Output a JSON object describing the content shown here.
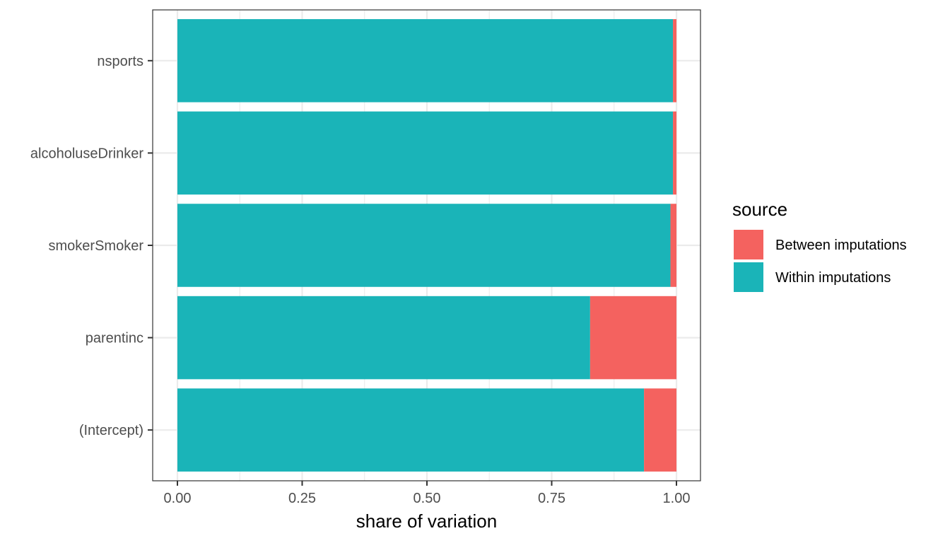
{
  "chart_data": {
    "type": "bar",
    "orientation": "horizontal",
    "stacked": true,
    "categories": [
      "nsports",
      "alcoholuseDrinker",
      "smokerSmoker",
      "parentinc",
      "(Intercept)"
    ],
    "series": [
      {
        "name": "Within imputations",
        "values": [
          0.993,
          0.993,
          0.988,
          0.827,
          0.935
        ],
        "color": "#1AB4B8"
      },
      {
        "name": "Between imputations",
        "values": [
          0.007,
          0.007,
          0.012,
          0.173,
          0.065
        ],
        "color": "#F4625F"
      }
    ],
    "xlabel": "share of variation",
    "ylabel": "",
    "xlim": [
      0,
      1
    ],
    "xticks": [
      0,
      0.25,
      0.5,
      0.75,
      1
    ],
    "xtick_labels": [
      "0.00",
      "0.25",
      "0.50",
      "0.75",
      "1.00"
    ],
    "grid": true,
    "legend": {
      "title": "source",
      "position": "right",
      "items": [
        "Between imputations",
        "Within imputations"
      ]
    }
  }
}
